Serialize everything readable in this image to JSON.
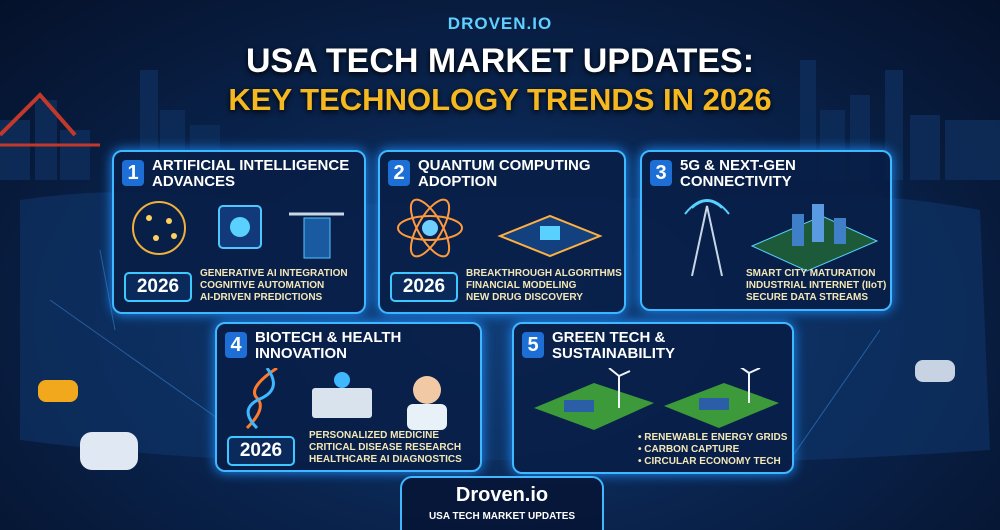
{
  "header": {
    "brand": "DROVEN.IO",
    "title_line1": "USA TECH MARKET UPDATES:",
    "title_line2": "KEY TECHNOLOGY TRENDS IN 2026"
  },
  "cards": [
    {
      "number": "1",
      "title_lines": [
        "ARTIFICIAL INTELLIGENCE",
        "ADVANCES"
      ],
      "year": "2026",
      "items": [
        "GENERATIVE AI INTEGRATION",
        "COGNITIVE AUTOMATION",
        "AI-DRIVEN PREDICTIONS"
      ]
    },
    {
      "number": "2",
      "title_lines": [
        "QUANTUM COMPUTING",
        "ADOPTION"
      ],
      "year": "2026",
      "items": [
        "BREAKTHROUGH ALGORITHMS",
        "FINANCIAL MODELING",
        "NEW DRUG DISCOVERY"
      ]
    },
    {
      "number": "3",
      "title_lines": [
        "5G & NEXT-GEN",
        "CONNECTIVITY"
      ],
      "items": [
        "SMART CITY MATURATION",
        "INDUSTRIAL INTERNET (IIoT)",
        "SECURE DATA STREAMS"
      ]
    },
    {
      "number": "4",
      "title_lines": [
        "BIOTECH & HEALTH",
        "INNOVATION"
      ],
      "year": "2026",
      "items": [
        "PERSONALIZED MEDICINE",
        "CRITICAL DISEASE RESEARCH",
        "HEALTHCARE AI DIAGNOSTICS"
      ]
    },
    {
      "number": "5",
      "title_lines": [
        "GREEN TECH &",
        "SUSTAINABILITY"
      ],
      "items": [
        "RENEWABLE ENERGY GRIDS",
        "CARBON CAPTURE",
        "CIRCULAR ECONOMY TECH"
      ]
    }
  ],
  "footer": {
    "logo": "Droven.io",
    "tagline": "USA TECH MARKET UPDATES"
  }
}
